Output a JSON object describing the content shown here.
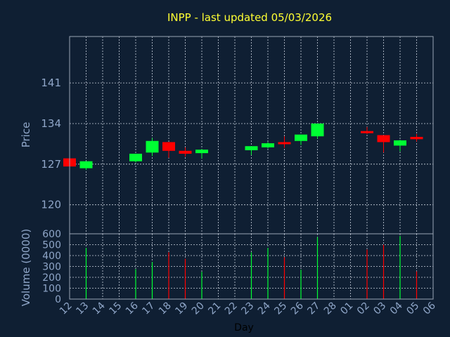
{
  "title": "INPP - last updated 05/03/2026",
  "chart_data": [
    {
      "type": "candlestick",
      "ylabel": "Price",
      "ylim": [
        115,
        149
      ],
      "yticks": [
        120,
        127,
        134,
        141
      ],
      "grid": true,
      "up_color": "#00ff33",
      "down_color": "#ff0000",
      "candles": [
        {
          "day": "12",
          "open": 128.0,
          "high": 128.0,
          "low": 126.6,
          "close": 126.6
        },
        {
          "day": "13",
          "open": 126.3,
          "high": 127.5,
          "low": 126.0,
          "close": 127.5
        },
        {
          "day": "16",
          "open": 127.5,
          "high": 128.8,
          "low": 127.3,
          "close": 128.8
        },
        {
          "day": "17",
          "open": 129.0,
          "high": 131.5,
          "low": 128.4,
          "close": 131.0
        },
        {
          "day": "18",
          "open": 130.8,
          "high": 130.8,
          "low": 128.1,
          "close": 129.3
        },
        {
          "day": "19",
          "open": 129.3,
          "high": 129.9,
          "low": 128.3,
          "close": 128.8
        },
        {
          "day": "20",
          "open": 128.9,
          "high": 129.6,
          "low": 128.0,
          "close": 129.5
        },
        {
          "day": "23",
          "open": 129.4,
          "high": 130.1,
          "low": 128.6,
          "close": 130.1
        },
        {
          "day": "24",
          "open": 129.9,
          "high": 130.8,
          "low": 129.7,
          "close": 130.6
        },
        {
          "day": "25",
          "open": 130.8,
          "high": 131.8,
          "low": 129.8,
          "close": 130.6
        },
        {
          "day": "26",
          "open": 131.0,
          "high": 132.1,
          "low": 130.3,
          "close": 132.1
        },
        {
          "day": "27",
          "open": 131.8,
          "high": 134.0,
          "low": 131.4,
          "close": 134.0
        },
        {
          "day": "02",
          "open": 132.7,
          "high": 133.4,
          "low": 132.2,
          "close": 132.4
        },
        {
          "day": "03",
          "open": 132.0,
          "high": 132.0,
          "low": 129.0,
          "close": 130.8
        },
        {
          "day": "04",
          "open": 130.2,
          "high": 131.2,
          "low": 129.2,
          "close": 131.1
        },
        {
          "day": "05",
          "open": 131.7,
          "high": 132.2,
          "low": 130.9,
          "close": 131.3
        }
      ]
    },
    {
      "type": "bar",
      "ylabel": "Volume (0000)",
      "ylim": [
        0,
        600
      ],
      "yticks": [
        0,
        100,
        200,
        300,
        400,
        500,
        600
      ],
      "grid": true,
      "bars": [
        {
          "day": "13",
          "value": 470,
          "color": "#00ff33"
        },
        {
          "day": "16",
          "value": 275,
          "color": "#00ff33"
        },
        {
          "day": "17",
          "value": 340,
          "color": "#00ff33"
        },
        {
          "day": "18",
          "value": 430,
          "color": "#ff0000"
        },
        {
          "day": "19",
          "value": 370,
          "color": "#ff0000"
        },
        {
          "day": "20",
          "value": 250,
          "color": "#00ff33"
        },
        {
          "day": "23",
          "value": 430,
          "color": "#00ff33"
        },
        {
          "day": "24",
          "value": 470,
          "color": "#00ff33"
        },
        {
          "day": "25",
          "value": 385,
          "color": "#ff0000"
        },
        {
          "day": "26",
          "value": 270,
          "color": "#00ff33"
        },
        {
          "day": "27",
          "value": 570,
          "color": "#00ff33"
        },
        {
          "day": "02",
          "value": 455,
          "color": "#ff0000"
        },
        {
          "day": "03",
          "value": 500,
          "color": "#ff0000"
        },
        {
          "day": "04",
          "value": 580,
          "color": "#00ff33"
        },
        {
          "day": "05",
          "value": 255,
          "color": "#ff0000"
        }
      ]
    }
  ],
  "x_axis": {
    "label": "Day",
    "ticks": [
      "12",
      "13",
      "14",
      "15",
      "16",
      "17",
      "18",
      "19",
      "20",
      "21",
      "22",
      "23",
      "24",
      "25",
      "26",
      "27",
      "28",
      "01",
      "02",
      "03",
      "04",
      "05",
      "06"
    ]
  }
}
